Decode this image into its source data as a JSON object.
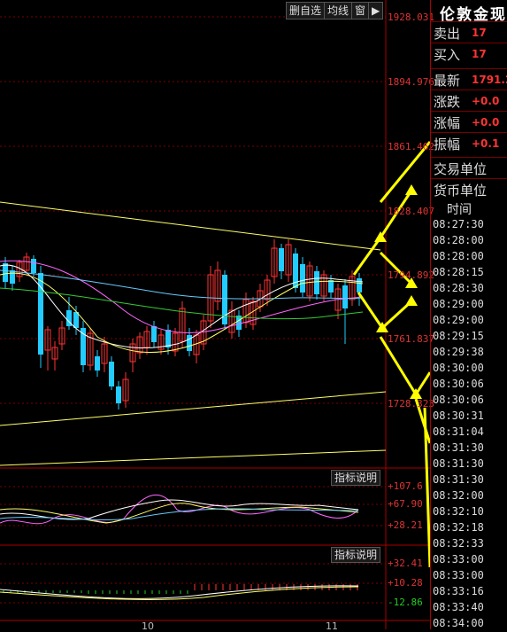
{
  "toolbar": {
    "delete_watch": "删自选",
    "ma_line": "均线",
    "window": "窗",
    "play_icon": "▶"
  },
  "price_axis": [
    "1928.031",
    "1894.976",
    "1861.462",
    "1828.407",
    "1794.892",
    "1761.837",
    "1728.323"
  ],
  "indicator1": {
    "button": "指标说明",
    "ticks": [
      "+107.6",
      "+67.90",
      "+28.21"
    ]
  },
  "indicator2": {
    "button": "指标说明",
    "ticks": [
      "+32.41",
      "+10.28",
      "-12.86"
    ]
  },
  "x_axis": [
    "10",
    "11"
  ],
  "panel": {
    "title": "伦敦金现",
    "rows": [
      {
        "label": "卖出",
        "value": "17"
      },
      {
        "label": "买入",
        "value": "17"
      },
      {
        "label": "最新",
        "value": "1791.2"
      },
      {
        "label": "涨跌",
        "value": "+0.0"
      },
      {
        "label": "涨幅",
        "value": "+0.0"
      },
      {
        "label": "振幅",
        "value": "+0.1"
      },
      {
        "label": "交易单位",
        "value": ""
      },
      {
        "label": "货币单位",
        "value": ""
      }
    ],
    "time_header": "时间",
    "times": [
      "08:27:30",
      "08:28:00",
      "08:28:00",
      "08:28:15",
      "08:28:30",
      "08:29:00",
      "08:29:00",
      "08:29:15",
      "08:29:38",
      "08:30:00",
      "08:30:06",
      "08:30:06",
      "08:30:31",
      "08:31:04",
      "08:31:30",
      "08:31:30",
      "08:31:30",
      "08:32:00",
      "08:32:10",
      "08:32:18",
      "08:32:33",
      "08:33:00",
      "08:33:00",
      "08:33:16",
      "08:33:40",
      "08:34:00"
    ]
  },
  "colors": {
    "up": "#ff3333",
    "down": "#22ccff",
    "trendline": "#ffff66",
    "arrow": "#ffff00",
    "panel_border": "#aa0000"
  }
}
